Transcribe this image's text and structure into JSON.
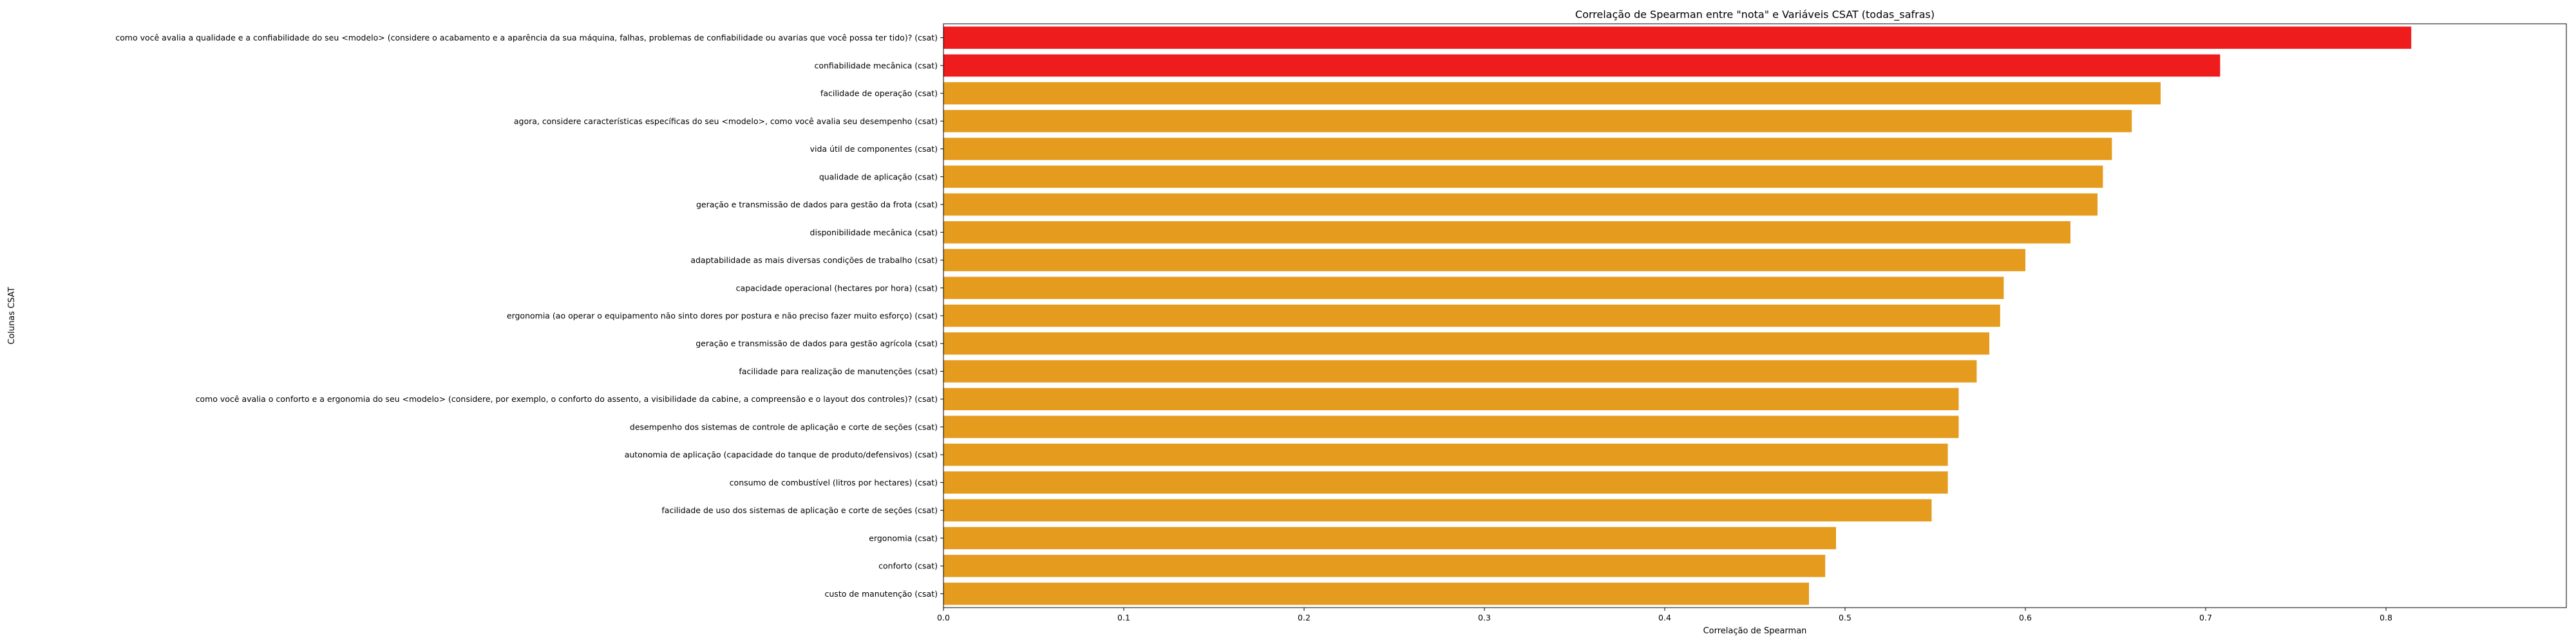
{
  "chart_data": {
    "type": "bar",
    "orientation": "horizontal",
    "title": "Correlação de Spearman entre \"nota\" e Variáveis CSAT (todas_safras)",
    "xlabel": "Correlação de Spearman",
    "ylabel": "Colunas CSAT",
    "xlim": [
      0,
      0.9
    ],
    "xticks": [
      "0.0",
      "0.1",
      "0.2",
      "0.3",
      "0.4",
      "0.5",
      "0.6",
      "0.7",
      "0.8"
    ],
    "grid": false,
    "colors": {
      "highlight": "#ee1c1c",
      "default": "#e59c1e"
    },
    "categories": [
      "como você avalia a qualidade e a confiabilidade do seu <modelo> (considere o acabamento e a aparência da sua máquina, falhas, problemas de confiabilidade ou avarias que você possa ter tido)? (csat)",
      "confiabilidade mecânica (csat)",
      "facilidade de operação (csat)",
      "agora, considere características específicas do seu <modelo>, como você avalia seu desempenho (csat)",
      "vida útil de componentes (csat)",
      "qualidade de aplicação (csat)",
      "geração e transmissão de dados para gestão da frota (csat)",
      "disponibilidade mecânica (csat)",
      "adaptabilidade as mais diversas condições de trabalho (csat)",
      "capacidade operacional (hectares por hora) (csat)",
      "ergonomia (ao operar o equipamento não sinto dores por postura e não preciso fazer muito esforço) (csat)",
      "geração e transmissão de dados para gestão agrícola (csat)",
      "facilidade para realização de manutenções (csat)",
      "como você avalia o conforto e a ergonomia do seu <modelo>  (considere, por exemplo, o conforto do assento, a visibilidade da cabine, a compreensão e o layout dos controles)? (csat)",
      "desempenho dos sistemas de controle de aplicação e corte de seções (csat)",
      "autonomia de aplicação (capacidade do tanque de produto/defensivos) (csat)",
      "consumo de combustível (litros por hectares) (csat)",
      "facilidade de uso dos sistemas de aplicação e corte de seções (csat)",
      "ergonomia (csat)",
      "conforto (csat)",
      "custo de manutenção (csat)"
    ],
    "values": [
      0.814,
      0.708,
      0.675,
      0.659,
      0.648,
      0.643,
      0.64,
      0.625,
      0.6,
      0.588,
      0.586,
      0.58,
      0.573,
      0.563,
      0.563,
      0.557,
      0.557,
      0.548,
      0.495,
      0.489,
      0.48
    ],
    "highlight_indices": [
      0,
      1
    ]
  }
}
